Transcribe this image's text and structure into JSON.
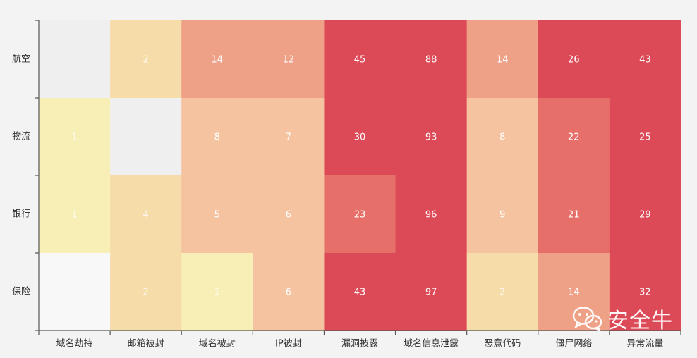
{
  "chart_data": {
    "type": "heatmap",
    "x_categories": [
      "域名劫持",
      "邮箱被封",
      "域名被封",
      "IP被封",
      "漏洞披露",
      "域名信息泄露",
      "恶意代码",
      "僵尸网络",
      "异常流量"
    ],
    "y_categories": [
      "航空",
      "物流",
      "银行",
      "保险"
    ],
    "values": [
      [
        null,
        2,
        14,
        12,
        45,
        88,
        14,
        26,
        43
      ],
      [
        1,
        null,
        8,
        7,
        30,
        93,
        8,
        22,
        25
      ],
      [
        1,
        4,
        5,
        6,
        23,
        96,
        9,
        21,
        29
      ],
      [
        null,
        2,
        1,
        6,
        43,
        97,
        2,
        14,
        32
      ]
    ],
    "colors": {
      "empty": "#efefef",
      "empty_alt": "#f8f8f8",
      "scale": [
        "#f7efb6",
        "#f6dca8",
        "#f5c3a0",
        "#efa187",
        "#e76f6a",
        "#dd4a57"
      ]
    },
    "grid": false
  },
  "watermark": {
    "text": "安全牛",
    "icon": "wechat-icon"
  }
}
